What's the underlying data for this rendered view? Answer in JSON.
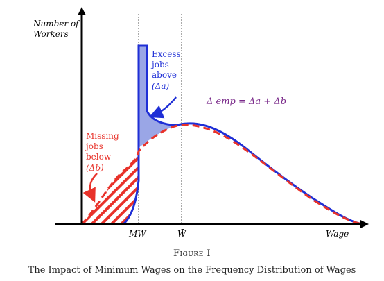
{
  "figure": {
    "number_label": "Figure I",
    "title": "The Impact of Minimum Wages on the Frequency Distribution of Wages"
  },
  "axes": {
    "y_label_line1": "Number of",
    "y_label_line2": "Workers",
    "x_label": "Wage",
    "tick_mw": "MW",
    "tick_wbar": "W̄"
  },
  "annotations": {
    "excess_line1": "Excess",
    "excess_line2": "jobs",
    "excess_line3": "above",
    "excess_line4": "(Δa)",
    "missing_line1": "Missing",
    "missing_line2": "jobs",
    "missing_line3": "below",
    "missing_line4": "(Δb)",
    "equation": "Δ emp = Δa + Δb"
  },
  "colors": {
    "blue": "#1f2fd6",
    "red": "#e8322a",
    "purple": "#7a2a8a",
    "fill_blue": "#9aa6e6",
    "axis": "#000000"
  },
  "chart_data": {
    "type": "area",
    "xlabel": "Wage",
    "ylabel": "Number of Workers",
    "grid": false,
    "legend": "none",
    "series": [
      {
        "name": "",
        "style": "dashed",
        "color": "red"
      },
      {
        "name": "",
        "style": "solid",
        "color": "blue"
      }
    ],
    "reference_lines": [
      "MW",
      "W̄"
    ]
  }
}
